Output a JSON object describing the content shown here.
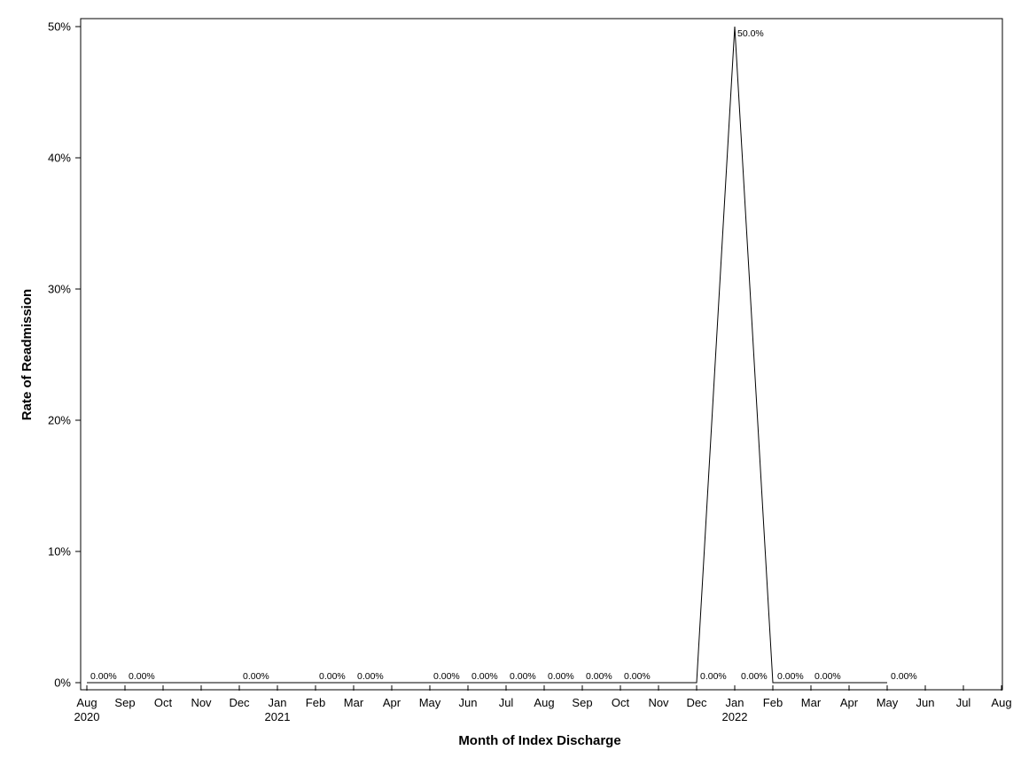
{
  "chart_data": {
    "type": "line",
    "xlabel": "Month of Index Discharge",
    "ylabel": "Rate of Readmission",
    "x_ticks": [
      {
        "label": "Aug",
        "year": "2020"
      },
      {
        "label": "Sep"
      },
      {
        "label": "Oct"
      },
      {
        "label": "Nov"
      },
      {
        "label": "Dec"
      },
      {
        "label": "Jan",
        "year": "2021"
      },
      {
        "label": "Feb"
      },
      {
        "label": "Mar"
      },
      {
        "label": "Apr"
      },
      {
        "label": "May"
      },
      {
        "label": "Jun"
      },
      {
        "label": "Jul"
      },
      {
        "label": "Aug"
      },
      {
        "label": "Sep"
      },
      {
        "label": "Oct"
      },
      {
        "label": "Nov"
      },
      {
        "label": "Dec"
      },
      {
        "label": "Jan",
        "year": "2022"
      },
      {
        "label": "Feb"
      },
      {
        "label": "Mar"
      },
      {
        "label": "Apr"
      },
      {
        "label": "May"
      },
      {
        "label": "Jun"
      },
      {
        "label": "Jul"
      },
      {
        "label": "Aug"
      }
    ],
    "y_ticks": [
      {
        "value": 0,
        "label": "0%"
      },
      {
        "value": 10,
        "label": "10%"
      },
      {
        "value": 20,
        "label": "20%"
      },
      {
        "value": 30,
        "label": "30%"
      },
      {
        "value": 40,
        "label": "40%"
      },
      {
        "value": 50,
        "label": "50%"
      }
    ],
    "ylim": [
      -0.5,
      50.5
    ],
    "series": [
      {
        "points": [
          {
            "x": "2020-08",
            "y": 0,
            "label": "0.00%"
          },
          {
            "x": "2020-09",
            "y": 0,
            "label": "0.00%"
          },
          {
            "x": "2020-12",
            "y": 0,
            "label": "0.00%"
          },
          {
            "x": "2021-02",
            "y": 0,
            "label": "0.00%"
          },
          {
            "x": "2021-03",
            "y": 0,
            "label": "0.00%"
          },
          {
            "x": "2021-05",
            "y": 0,
            "label": "0.00%"
          },
          {
            "x": "2021-06",
            "y": 0,
            "label": "0.00%"
          },
          {
            "x": "2021-07",
            "y": 0,
            "label": "0.00%"
          },
          {
            "x": "2021-08",
            "y": 0,
            "label": "0.00%"
          },
          {
            "x": "2021-09",
            "y": 0,
            "label": "0.00%"
          },
          {
            "x": "2021-10",
            "y": 0,
            "label": "0.00%"
          },
          {
            "x": "2021-12",
            "y": 0,
            "label": "0.00%"
          },
          {
            "x": "2022-01",
            "y": 50,
            "label": "50.0%"
          },
          {
            "x": "2022-02",
            "y": 0,
            "label": "0.00%"
          },
          {
            "x": "2022-02",
            "y": 0,
            "label": "0.00%"
          },
          {
            "x": "2022-03",
            "y": 0,
            "label": "0.00%"
          },
          {
            "x": "2022-05",
            "y": 0,
            "label": "0.00%"
          }
        ]
      }
    ],
    "grid": false,
    "legend": "none",
    "line_color": "#000000"
  }
}
